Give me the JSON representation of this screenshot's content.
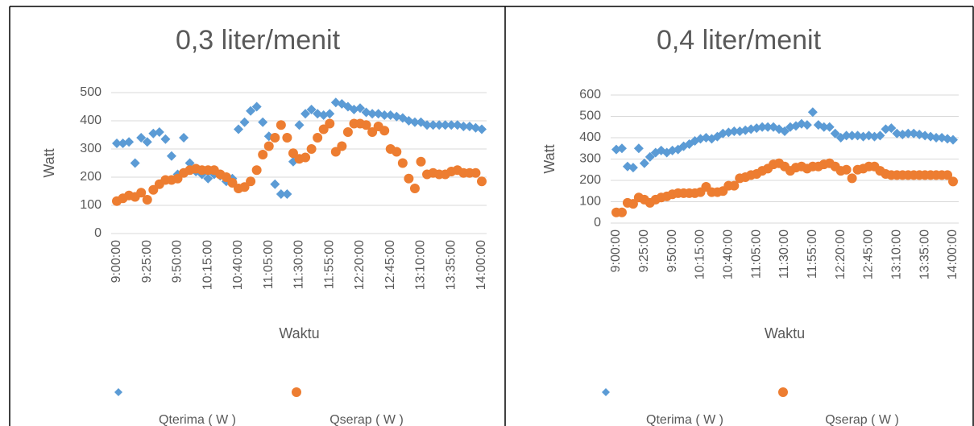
{
  "chart_data": [
    {
      "type": "scatter",
      "title": "0,3 liter/menit",
      "y_label": "Watt",
      "x_label": "Waktu",
      "categories": [
        "9:00:00",
        null,
        null,
        null,
        null,
        "9:25:00",
        null,
        null,
        null,
        null,
        "9:50:00",
        null,
        null,
        null,
        null,
        "10:15:00",
        null,
        null,
        null,
        null,
        "10:40:00",
        null,
        null,
        null,
        null,
        "11:05:00",
        null,
        null,
        null,
        null,
        "11:30:00",
        null,
        null,
        null,
        null,
        "11:55:00",
        null,
        null,
        null,
        null,
        "12:20:00",
        null,
        null,
        null,
        null,
        "12:45:00",
        null,
        null,
        null,
        null,
        "13:10:00",
        null,
        null,
        null,
        null,
        "13:35:00",
        null,
        null,
        null,
        null,
        "14:00:00"
      ],
      "ylim": [
        0,
        500
      ],
      "yticks": [
        0,
        100,
        200,
        300,
        400,
        500
      ],
      "grid": true,
      "legend": "bottom",
      "series": [
        {
          "name": "Qterima ( W )",
          "color": "#5b9bd5",
          "marker": "diamond",
          "values": [
            320,
            320,
            325,
            250,
            340,
            325,
            355,
            360,
            335,
            275,
            210,
            340,
            250,
            220,
            210,
            195,
            210,
            205,
            185,
            195,
            370,
            395,
            435,
            450,
            395,
            345,
            175,
            140,
            140,
            255,
            385,
            425,
            440,
            425,
            420,
            425,
            465,
            460,
            450,
            440,
            445,
            430,
            425,
            425,
            420,
            420,
            415,
            410,
            400,
            395,
            395,
            385,
            385,
            385,
            385,
            385,
            385,
            380,
            380,
            375,
            370
          ]
        },
        {
          "name": "Qserap ( W )",
          "color": "#ed7d31",
          "marker": "circle",
          "values": [
            115,
            125,
            135,
            130,
            145,
            120,
            155,
            175,
            190,
            190,
            195,
            215,
            225,
            230,
            225,
            225,
            225,
            210,
            200,
            180,
            160,
            165,
            185,
            225,
            280,
            310,
            340,
            385,
            340,
            285,
            265,
            270,
            300,
            340,
            370,
            390,
            290,
            310,
            360,
            390,
            390,
            385,
            360,
            380,
            365,
            300,
            290,
            250,
            195,
            160,
            255,
            210,
            215,
            210,
            210,
            220,
            225,
            215,
            215,
            215,
            185
          ]
        }
      ]
    },
    {
      "type": "scatter",
      "title": "0,4 liter/menit",
      "y_label": "Watt",
      "x_label": "Waktu",
      "categories": [
        "9:00:00",
        null,
        null,
        null,
        null,
        "9:25:00",
        null,
        null,
        null,
        null,
        "9:50:00",
        null,
        null,
        null,
        null,
        "10:15:00",
        null,
        null,
        null,
        null,
        "10:40:00",
        null,
        null,
        null,
        null,
        "11:05:00",
        null,
        null,
        null,
        null,
        "11:30:00",
        null,
        null,
        null,
        null,
        "11:55:00",
        null,
        null,
        null,
        null,
        "12:20:00",
        null,
        null,
        null,
        null,
        "12:45:00",
        null,
        null,
        null,
        null,
        "13:10:00",
        null,
        null,
        null,
        null,
        "13:35:00",
        null,
        null,
        null,
        null,
        "14:00:00"
      ],
      "ylim": [
        0,
        600
      ],
      "yticks": [
        0,
        100,
        200,
        300,
        400,
        500,
        600
      ],
      "grid": true,
      "legend": "bottom",
      "series": [
        {
          "name": "Qterima ( W )",
          "color": "#5b9bd5",
          "marker": "diamond",
          "values": [
            345,
            350,
            265,
            260,
            350,
            280,
            310,
            330,
            340,
            330,
            340,
            345,
            360,
            370,
            385,
            395,
            400,
            395,
            405,
            420,
            425,
            430,
            430,
            435,
            440,
            445,
            450,
            450,
            450,
            440,
            430,
            450,
            455,
            465,
            460,
            520,
            460,
            450,
            450,
            420,
            400,
            410,
            410,
            410,
            405,
            410,
            405,
            410,
            440,
            445,
            420,
            415,
            420,
            420,
            415,
            410,
            405,
            400,
            400,
            395,
            390
          ]
        },
        {
          "name": "Qserap ( W )",
          "color": "#ed7d31",
          "marker": "circle",
          "values": [
            50,
            50,
            95,
            90,
            120,
            110,
            95,
            110,
            120,
            125,
            135,
            140,
            140,
            140,
            140,
            145,
            170,
            145,
            145,
            150,
            175,
            175,
            210,
            215,
            225,
            230,
            245,
            255,
            275,
            280,
            265,
            245,
            260,
            265,
            255,
            265,
            265,
            275,
            280,
            265,
            245,
            250,
            210,
            250,
            255,
            265,
            265,
            245,
            230,
            225,
            225,
            225,
            225,
            225,
            225,
            225,
            225,
            225,
            225,
            225,
            195
          ]
        }
      ]
    }
  ]
}
